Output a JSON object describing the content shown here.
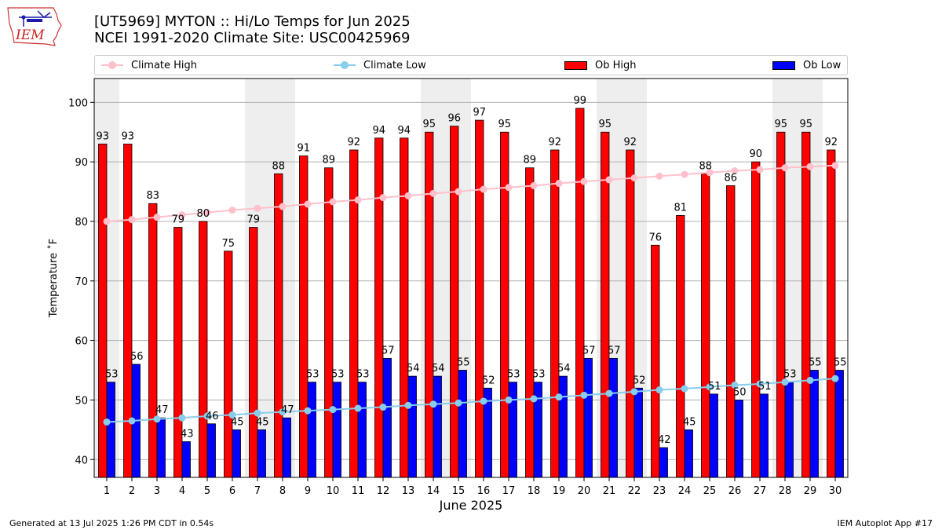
{
  "header": {
    "logo_text": "IEM",
    "title_line1": "[UT5969] MYTON :: Hi/Lo Temps for Jun 2025",
    "title_line2": "NCEI 1991-2020 Climate Site: USC00425969"
  },
  "legend": {
    "items": [
      {
        "label": "Climate High",
        "color": "#ffc0cb",
        "kind": "line"
      },
      {
        "label": "Climate Low",
        "color": "#87ceeb",
        "kind": "line"
      },
      {
        "label": "Ob High",
        "color": "#ff0000",
        "kind": "bar"
      },
      {
        "label": "Ob Low",
        "color": "#0000ff",
        "kind": "bar"
      }
    ]
  },
  "chart_data": {
    "type": "bar",
    "xlabel": "June 2025",
    "ylabel": "Temperature ˚F",
    "ylim": [
      37,
      104
    ],
    "yticks": [
      40,
      50,
      60,
      70,
      80,
      90,
      100
    ],
    "grid": "horizontal",
    "legend_position": "top",
    "categories": [
      1,
      2,
      3,
      4,
      5,
      6,
      7,
      8,
      9,
      10,
      11,
      12,
      13,
      14,
      15,
      16,
      17,
      18,
      19,
      20,
      21,
      22,
      23,
      24,
      25,
      26,
      27,
      28,
      29,
      30
    ],
    "weekend_shading": [
      [
        1,
        1
      ],
      [
        7,
        8
      ],
      [
        14,
        15
      ],
      [
        21,
        22
      ],
      [
        28,
        29
      ]
    ],
    "series": [
      {
        "name": "Ob High",
        "type": "bar",
        "color": "#ff0000",
        "values": [
          93,
          93,
          83,
          79,
          80,
          75,
          79,
          88,
          91,
          89,
          92,
          94,
          94,
          95,
          96,
          97,
          95,
          89,
          92,
          99,
          95,
          92,
          76,
          81,
          88,
          86,
          90,
          95,
          95,
          92
        ]
      },
      {
        "name": "Ob Low",
        "type": "bar",
        "color": "#0000ff",
        "values": [
          53,
          56,
          47,
          43,
          46,
          45,
          45,
          47,
          53,
          53,
          53,
          57,
          54,
          54,
          55,
          52,
          53,
          53,
          54,
          57,
          57,
          52,
          42,
          45,
          51,
          50,
          51,
          53,
          55,
          55
        ]
      },
      {
        "name": "Climate High",
        "type": "line",
        "color": "#ffc0cb",
        "values": [
          80.0,
          80.3,
          80.7,
          81.1,
          81.5,
          81.9,
          82.2,
          82.5,
          82.9,
          83.3,
          83.6,
          84.0,
          84.3,
          84.7,
          85.0,
          85.4,
          85.7,
          86.0,
          86.4,
          86.7,
          87.0,
          87.3,
          87.6,
          87.9,
          88.2,
          88.5,
          88.7,
          89.0,
          89.2,
          89.4
        ]
      },
      {
        "name": "Climate Low",
        "type": "line",
        "color": "#87ceeb",
        "values": [
          46.3,
          46.5,
          46.8,
          47.0,
          47.3,
          47.5,
          47.8,
          48.0,
          48.2,
          48.4,
          48.6,
          48.8,
          49.1,
          49.3,
          49.5,
          49.8,
          50.0,
          50.2,
          50.5,
          50.8,
          51.1,
          51.4,
          51.7,
          51.9,
          52.2,
          52.5,
          52.7,
          53.0,
          53.3,
          53.6
        ]
      }
    ]
  },
  "footer": {
    "left": "Generated at 13 Jul 2025 1:26 PM CDT in 0.54s",
    "right": "IEM Autoplot App #17"
  }
}
